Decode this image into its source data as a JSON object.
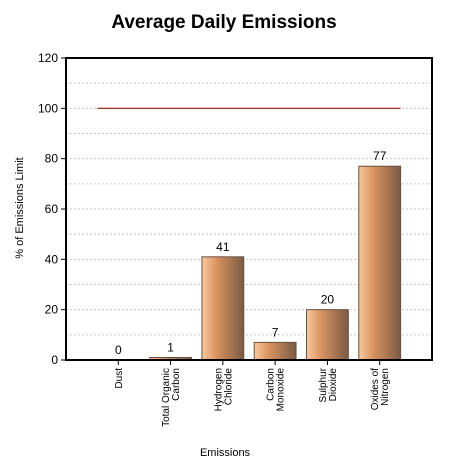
{
  "chart_data": {
    "type": "bar",
    "title": "Average Daily Emissions",
    "xlabel": "Emissions",
    "ylabel": "% of Emissions Limit",
    "ylim": [
      0,
      120
    ],
    "yticks": [
      0,
      20,
      40,
      60,
      80,
      100,
      120
    ],
    "categories": [
      [
        "Dust"
      ],
      [
        "Total Organic",
        "Carbon"
      ],
      [
        "Hydrogen",
        "Chloride"
      ],
      [
        "Carbon",
        "Monoxide"
      ],
      [
        "Sulphur",
        "Dioxide"
      ],
      [
        "Oxides of",
        "Nitrogen"
      ]
    ],
    "values": [
      0,
      1,
      41,
      7,
      20,
      77
    ],
    "data_labels": [
      "0",
      "1",
      "41",
      "7",
      "20",
      "77"
    ],
    "limit_line": 100,
    "grid": true,
    "legend": "none",
    "colors": {
      "bar_light": "#f7c9a0",
      "bar_mid": "#d9935f",
      "bar_dark": "#7a5a45",
      "limit_line": "#8b1a00",
      "grid": "#c8c8c8",
      "frame": "#000000"
    }
  }
}
